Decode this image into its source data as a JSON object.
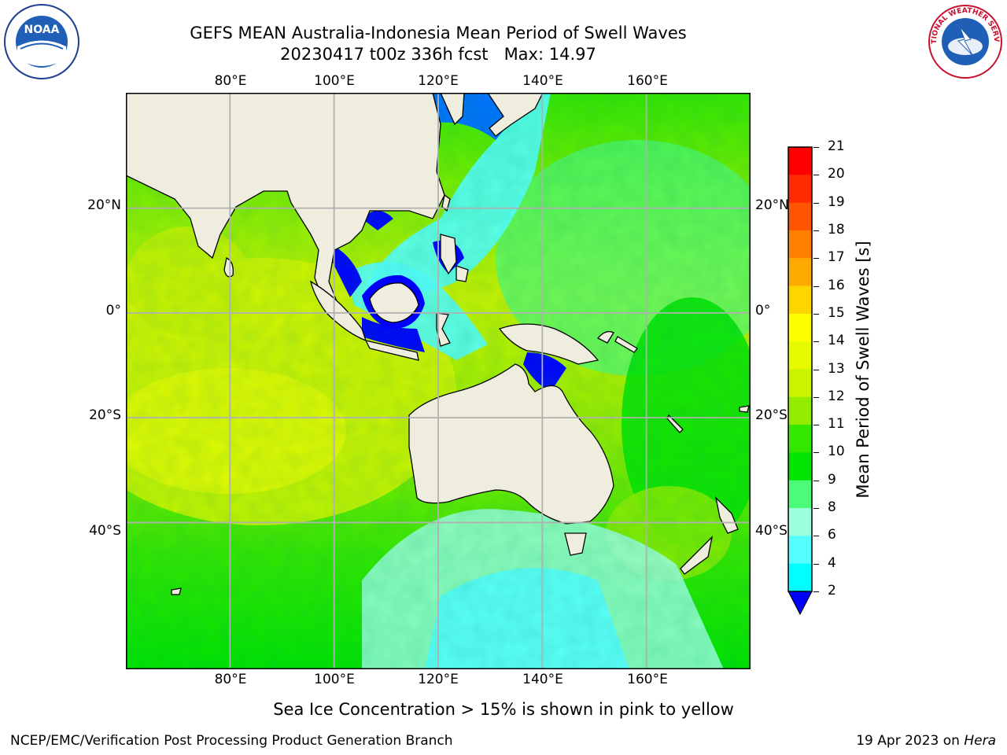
{
  "header": {
    "title_line1": "GEFS MEAN Australia-Indonesia Mean Period of Swell Waves",
    "title_line2": "20230417 t00z 336h fcst   Max: 14.97"
  },
  "logos": {
    "left": "NOAA",
    "right": "NATIONAL WEATHER SERVICE"
  },
  "map": {
    "lon_labels": [
      "80°E",
      "100°E",
      "120°E",
      "140°E",
      "160°E"
    ],
    "lat_labels": [
      "20°N",
      "0°",
      "20°S",
      "40°S"
    ],
    "lon_range": [
      60,
      180
    ],
    "lat_range": [
      -68,
      42
    ],
    "land_color": "#efedde",
    "grid_color": "#b0b0b0"
  },
  "colorbar": {
    "label": "Mean Period of Swell Waves [s]",
    "ticks": [
      "21",
      "20",
      "19",
      "18",
      "17",
      "16",
      "15",
      "14",
      "13",
      "12",
      "11",
      "10",
      "9",
      "8",
      "6",
      "4",
      "2"
    ],
    "colors": [
      "#ff0000",
      "#ff2a00",
      "#ff5500",
      "#ff7f00",
      "#ffaa00",
      "#ffd500",
      "#ffff00",
      "#e6fb00",
      "#c9f300",
      "#92ec00",
      "#33e800",
      "#00e400",
      "#4dfb7a",
      "#9bffdf",
      "#55ffff",
      "#00ffff",
      "#00e8ff",
      "#0072ff",
      "#0000ff"
    ]
  },
  "footer": {
    "note": "Sea Ice Concentration > 15% is shown in pink to yellow",
    "left": "NCEP/EMC/Verification Post Processing Product Generation Branch",
    "right_prefix": "19 Apr 2023 on ",
    "right_machine": "Hera"
  }
}
